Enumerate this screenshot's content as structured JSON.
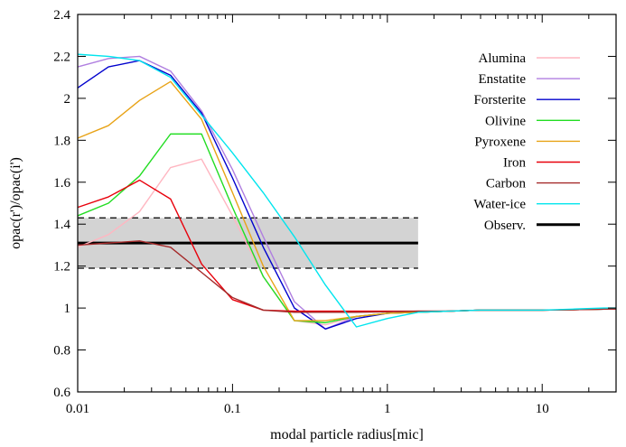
{
  "chart_data": {
    "type": "line",
    "xlabel": "modal particle radius[mic]",
    "ylabel": "opac(r')/opac(i')",
    "xscale": "log",
    "xlim": [
      0.01,
      30
    ],
    "ylim": [
      0.6,
      2.4
    ],
    "x_ticks": [
      {
        "value": 0.01,
        "label": "0.01"
      },
      {
        "value": 0.1,
        "label": "0.1"
      },
      {
        "value": 1,
        "label": "1"
      },
      {
        "value": 10,
        "label": "10"
      }
    ],
    "y_ticks": [
      {
        "value": 0.6,
        "label": "0.6"
      },
      {
        "value": 0.8,
        "label": "0.8"
      },
      {
        "value": 1.0,
        "label": "1"
      },
      {
        "value": 1.2,
        "label": "1.2"
      },
      {
        "value": 1.4,
        "label": "1.4"
      },
      {
        "value": 1.6,
        "label": "1.6"
      },
      {
        "value": 1.8,
        "label": "1.8"
      },
      {
        "value": 2.0,
        "label": "2"
      },
      {
        "value": 2.2,
        "label": "2.2"
      },
      {
        "value": 2.4,
        "label": "2.4"
      }
    ],
    "grid": false,
    "legend_position": "top-right",
    "observation": {
      "name": "Observ.",
      "color": "#000000",
      "value": 1.31,
      "lower": 1.19,
      "upper": 1.43,
      "x_range": [
        0.01,
        1.58
      ],
      "band_color": "#d3d3d3"
    },
    "series": [
      {
        "name": "Alumina",
        "color": "#ffb6c1",
        "x": [
          0.01,
          0.0158,
          0.0251,
          0.0398,
          0.0631,
          0.1,
          0.158,
          0.251,
          0.398,
          0.631,
          1.0,
          1.58,
          2.51,
          3.98,
          6.31,
          10,
          15.8,
          25.1,
          30
        ],
        "y": [
          1.29,
          1.35,
          1.46,
          1.67,
          1.71,
          1.44,
          1.15,
          0.94,
          0.92,
          0.96,
          0.975,
          0.98,
          0.985,
          0.99,
          0.99,
          0.99,
          0.992,
          0.995,
          0.995
        ]
      },
      {
        "name": "Enstatite",
        "color": "#b07fe0",
        "x": [
          0.01,
          0.0158,
          0.0251,
          0.0398,
          0.0631,
          0.1,
          0.158,
          0.251,
          0.398,
          0.631,
          1.0,
          1.58,
          2.51,
          3.98,
          6.31,
          10,
          15.8,
          25.1,
          30
        ],
        "y": [
          2.15,
          2.19,
          2.2,
          2.13,
          1.94,
          1.66,
          1.34,
          1.03,
          0.9,
          0.96,
          0.975,
          0.98,
          0.985,
          0.99,
          0.99,
          0.99,
          0.992,
          0.995,
          0.995
        ]
      },
      {
        "name": "Forsterite",
        "color": "#0000cd",
        "x": [
          0.01,
          0.0158,
          0.0251,
          0.0398,
          0.0631,
          0.1,
          0.158,
          0.251,
          0.398,
          0.631,
          1.0,
          1.58,
          2.51,
          3.98,
          6.31,
          10,
          15.8,
          25.1,
          30
        ],
        "y": [
          2.05,
          2.15,
          2.18,
          2.11,
          1.93,
          1.62,
          1.29,
          1.0,
          0.9,
          0.95,
          0.975,
          0.98,
          0.985,
          0.99,
          0.99,
          0.99,
          0.992,
          0.995,
          0.995
        ]
      },
      {
        "name": "Olivine",
        "color": "#22dd22",
        "x": [
          0.01,
          0.0158,
          0.0251,
          0.0398,
          0.0631,
          0.1,
          0.158,
          0.251,
          0.398,
          0.631,
          1.0,
          1.58,
          2.51,
          3.98,
          6.31,
          10,
          15.8,
          25.1,
          30
        ],
        "y": [
          1.44,
          1.5,
          1.63,
          1.83,
          1.83,
          1.48,
          1.15,
          0.94,
          0.93,
          0.96,
          0.975,
          0.98,
          0.985,
          0.99,
          0.99,
          0.99,
          0.992,
          0.995,
          0.995
        ]
      },
      {
        "name": "Pyroxene",
        "color": "#e8a317",
        "x": [
          0.01,
          0.0158,
          0.0251,
          0.0398,
          0.0631,
          0.1,
          0.158,
          0.251,
          0.398,
          0.631,
          1.0,
          1.58,
          2.51,
          3.98,
          6.31,
          10,
          15.8,
          25.1,
          30
        ],
        "y": [
          1.81,
          1.87,
          1.99,
          2.08,
          1.9,
          1.55,
          1.2,
          0.94,
          0.94,
          0.96,
          0.975,
          0.98,
          0.985,
          0.99,
          0.99,
          0.99,
          0.992,
          0.995,
          0.995
        ]
      },
      {
        "name": "Iron",
        "color": "#e8000b",
        "x": [
          0.01,
          0.0158,
          0.0251,
          0.0398,
          0.0631,
          0.1,
          0.158,
          0.251,
          0.398,
          0.631,
          1.0,
          1.58,
          2.51,
          3.98,
          6.31,
          10,
          15.8,
          25.1,
          30
        ],
        "y": [
          1.48,
          1.53,
          1.61,
          1.52,
          1.21,
          1.04,
          0.99,
          0.985,
          0.985,
          0.985,
          0.985,
          0.985,
          0.985,
          0.99,
          0.99,
          0.99,
          0.992,
          0.995,
          0.995
        ]
      },
      {
        "name": "Carbon",
        "color": "#a52a2a",
        "x": [
          0.01,
          0.0158,
          0.0251,
          0.0398,
          0.0631,
          0.1,
          0.158,
          0.251,
          0.398,
          0.631,
          1.0,
          1.58,
          2.51,
          3.98,
          6.31,
          10,
          15.8,
          25.1,
          30
        ],
        "y": [
          1.3,
          1.31,
          1.32,
          1.29,
          1.17,
          1.05,
          0.99,
          0.98,
          0.98,
          0.98,
          0.982,
          0.985,
          0.985,
          0.99,
          0.99,
          0.99,
          0.992,
          0.995,
          0.995
        ]
      },
      {
        "name": "Water-ice",
        "color": "#00e5ee",
        "x": [
          0.01,
          0.0158,
          0.0251,
          0.0398,
          0.0631,
          0.1,
          0.158,
          0.251,
          0.398,
          0.631,
          1.0,
          1.58,
          2.51,
          3.98,
          6.31,
          10,
          15.8,
          25.1,
          30
        ],
        "y": [
          2.21,
          2.2,
          2.18,
          2.1,
          1.92,
          1.74,
          1.55,
          1.34,
          1.11,
          0.91,
          0.95,
          0.98,
          0.985,
          0.99,
          0.99,
          0.99,
          0.995,
          1.0,
          1.0
        ]
      }
    ]
  }
}
